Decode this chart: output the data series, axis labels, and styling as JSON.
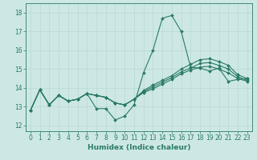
{
  "xlabel": "Humidex (Indice chaleur)",
  "bg_color": "#cde8e4",
  "grid_color": "#b8d8d4",
  "line_color": "#2a7a6a",
  "xlim": [
    -0.5,
    23.5
  ],
  "ylim": [
    11.7,
    18.5
  ],
  "yticks": [
    12,
    13,
    14,
    15,
    16,
    17,
    18
  ],
  "xticks": [
    0,
    1,
    2,
    3,
    4,
    5,
    6,
    7,
    8,
    9,
    10,
    11,
    12,
    13,
    14,
    15,
    16,
    17,
    18,
    19,
    20,
    21,
    22,
    23
  ],
  "series": [
    [
      12.8,
      13.9,
      13.1,
      13.6,
      13.3,
      13.4,
      13.7,
      12.9,
      12.9,
      12.3,
      12.5,
      13.1,
      14.8,
      16.0,
      17.7,
      17.85,
      17.0,
      15.1,
      15.05,
      14.9,
      15.05,
      14.35,
      14.45,
      14.5
    ],
    [
      12.8,
      13.9,
      13.1,
      13.6,
      13.3,
      13.4,
      13.7,
      13.6,
      13.5,
      13.2,
      13.1,
      13.4,
      13.85,
      14.15,
      14.4,
      14.65,
      15.0,
      15.25,
      15.5,
      15.55,
      15.4,
      15.2,
      14.7,
      14.5
    ],
    [
      12.8,
      13.9,
      13.1,
      13.6,
      13.3,
      13.4,
      13.7,
      13.6,
      13.5,
      13.2,
      13.1,
      13.4,
      13.8,
      14.05,
      14.3,
      14.55,
      14.85,
      15.05,
      15.3,
      15.35,
      15.2,
      15.0,
      14.6,
      14.4
    ],
    [
      12.8,
      13.9,
      13.1,
      13.6,
      13.3,
      13.4,
      13.7,
      13.6,
      13.5,
      13.2,
      13.1,
      13.4,
      13.75,
      13.95,
      14.2,
      14.45,
      14.75,
      14.95,
      15.1,
      15.15,
      15.0,
      14.8,
      14.5,
      14.35
    ]
  ]
}
